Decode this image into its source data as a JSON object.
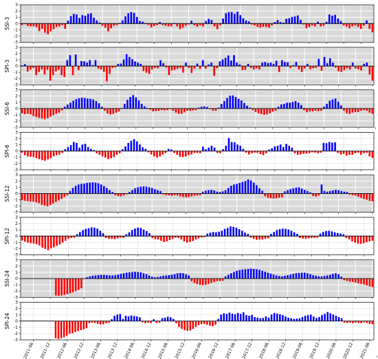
{
  "chart_data": {
    "type": "bar",
    "x_tick_labels": [
      "2011-06",
      "2011-12",
      "2012-06",
      "2012-12",
      "2013-06",
      "2013-12",
      "2014-06",
      "2014-12",
      "2015-06",
      "2015-12",
      "2016-06",
      "2016-12",
      "2017-06",
      "2017-12",
      "2018-06",
      "2018-12",
      "2019-06",
      "2019-12",
      "2020-06",
      "2020-12",
      "2021-06",
      "2021-12",
      "2022-06",
      "2022-12"
    ],
    "y_ticks": [
      3,
      2,
      1,
      0,
      -1,
      -2,
      -3
    ],
    "ylim": [
      -3,
      3
    ],
    "grid": true,
    "colors": {
      "positive": "#0000ff",
      "negative": "#ff0000",
      "ssi_background": "#d9d9d9",
      "spi_background": "#ffffff",
      "zero_line": "#000000"
    },
    "panels": [
      {
        "ylabel": "SSI-3",
        "background": "gray",
        "values": [
          -0.25,
          -0.1,
          -0.4,
          -0.45,
          -0.45,
          -0.55,
          -1.2,
          -0.85,
          -1.45,
          -1.7,
          -1.25,
          -0.9,
          -0.55,
          -0.45,
          -0.25,
          -0.85,
          0.45,
          1.2,
          1.55,
          1.45,
          0.9,
          1.35,
          1.25,
          1.55,
          1.65,
          0.95,
          0.5,
          0.15,
          -0.35,
          -0.65,
          -1.25,
          -0.75,
          -0.35,
          -0.25,
          0.1,
          0.5,
          1.15,
          1.65,
          1.85,
          1.7,
          1.05,
          0.4,
          0.3,
          0.1,
          -0.2,
          -0.6,
          -0.4,
          -0.25,
          0.25,
          -0.25,
          -0.35,
          -0.45,
          -0.45,
          0.1,
          -0.45,
          -0.9,
          -0.65,
          -0.35,
          -0.15,
          0.45,
          -0.25,
          -0.5,
          -0.3,
          -0.45,
          0.4,
          0.75,
          0.55,
          -0.45,
          -0.9,
          -0.25,
          0.8,
          1.65,
          1.85,
          1.85,
          1.55,
          1.9,
          1.35,
          0.85,
          0.5,
          0.35,
          -0.15,
          -0.3,
          -0.55,
          -0.65,
          -0.5,
          -0.55,
          -0.65,
          -0.3,
          0.25,
          0.55,
          0.25,
          0.15,
          0.75,
          0.85,
          1.05,
          1.15,
          1.3,
          0.6,
          -0.15,
          -0.75,
          -0.55,
          -0.3,
          -0.45,
          0.3,
          -0.45,
          -0.35,
          0.3,
          1.45,
          1.25,
          1.4,
          0.8,
          0.4,
          -0.3,
          -0.5,
          -0.75,
          -0.45,
          -0.3,
          -0.55,
          -0.85,
          -0.35,
          0.5,
          -0.85,
          -1.4
        ]
      },
      {
        "ylabel": "SPI-3",
        "background": "gray",
        "values": [
          0.1,
          0.3,
          -0.9,
          -0.55,
          -0.3,
          -1.45,
          -0.95,
          -0.55,
          -1.35,
          -0.6,
          -2.35,
          -1.45,
          -0.85,
          -0.6,
          -1.45,
          -1.75,
          0.95,
          1.75,
          -1.45,
          1.85,
          -0.65,
          0.8,
          0.75,
          0.55,
          0.95,
          0.15,
          0.95,
          -0.4,
          -0.55,
          -0.95,
          -2.45,
          -1.25,
          -0.3,
          -0.2,
          0.35,
          0.4,
          1.05,
          1.9,
          1.45,
          1.1,
          0.75,
          0.55,
          0.35,
          -0.8,
          -1.05,
          -1.25,
          -0.55,
          -0.3,
          -0.35,
          0.95,
          0.45,
          -0.25,
          -1.45,
          -0.7,
          -0.6,
          -0.45,
          -0.3,
          -1.05,
          0.55,
          -0.3,
          -1.1,
          -0.4,
          0.4,
          -0.45,
          0.95,
          -0.4,
          0.25,
          0.55,
          -1.55,
          -0.35,
          0.75,
          1.05,
          1.3,
          1.7,
          0.9,
          1.75,
          0.55,
          0.25,
          -0.65,
          -0.6,
          0.35,
          -0.3,
          -0.55,
          -0.35,
          -0.55,
          0.55,
          0.65,
          0.5,
          0.55,
          0.35,
          0.85,
          -0.95,
          0.95,
          0.65,
          0.6,
          -0.3,
          0.15,
          0.65,
          -0.55,
          -0.95,
          -0.4,
          0.35,
          -0.5,
          -0.35,
          -0.3,
          1.15,
          -0.75,
          1.45,
          0.45,
          1.25,
          0.55,
          -0.25,
          -0.85,
          -0.95,
          -0.65,
          -0.35,
          -0.55,
          0.55,
          -0.4,
          -0.5,
          -0.7,
          0.35,
          0.55,
          -1.35,
          -2.35
        ]
      },
      {
        "ylabel": "SSI-6",
        "background": "gray",
        "values": [
          -0.75,
          -0.9,
          -0.85,
          -0.95,
          -1.2,
          -1.35,
          -1.5,
          -1.6,
          -1.7,
          -1.55,
          -1.3,
          -1.05,
          -0.85,
          -0.65,
          -0.3,
          0.3,
          0.65,
          0.95,
          1.25,
          1.5,
          1.65,
          1.75,
          1.7,
          1.6,
          1.55,
          1.45,
          1.2,
          0.85,
          0.3,
          -0.35,
          -0.8,
          -0.95,
          -0.85,
          -0.65,
          -0.45,
          0.1,
          0.75,
          1.4,
          1.85,
          2.15,
          1.8,
          1.3,
          0.75,
          0.35,
          0.1,
          -0.2,
          -0.45,
          -0.4,
          -0.35,
          -0.25,
          -0.3,
          -0.25,
          -0.1,
          -0.35,
          -0.65,
          -0.85,
          -0.85,
          -0.6,
          -0.35,
          -0.35,
          -0.3,
          -0.25,
          0.15,
          0.3,
          0.35,
          0.25,
          -0.1,
          -0.35,
          -0.35,
          0.15,
          0.75,
          1.2,
          1.7,
          2.05,
          2.1,
          1.85,
          1.55,
          1.3,
          0.9,
          0.45,
          0.15,
          -0.25,
          -0.55,
          -0.75,
          -0.9,
          -1.0,
          -0.95,
          -0.75,
          -0.5,
          -0.35,
          0.3,
          0.65,
          0.75,
          0.95,
          0.95,
          1.05,
          1.2,
          0.95,
          0.55,
          -0.25,
          -0.6,
          -0.45,
          -0.45,
          -0.35,
          -0.4,
          -0.35,
          0.3,
          0.75,
          1.25,
          1.45,
          1.6,
          1.1,
          0.5,
          -0.35,
          -0.75,
          -0.85,
          -0.65,
          -0.55,
          -0.55,
          -0.35,
          -0.25,
          -0.35,
          -0.65,
          -0.85
        ]
      },
      {
        "ylabel": "SPI-6",
        "background": "white",
        "values": [
          -0.25,
          -0.65,
          -0.85,
          -0.9,
          -0.95,
          -1.15,
          -1.3,
          -1.45,
          -1.55,
          -1.35,
          -1.15,
          -0.85,
          -0.65,
          -0.55,
          -0.3,
          0.3,
          0.65,
          0.95,
          1.45,
          1.3,
          0.55,
          1.05,
          1.15,
          0.65,
          0.35,
          0.15,
          -0.35,
          -0.6,
          -0.85,
          -1.05,
          -1.3,
          -1.15,
          -0.95,
          -0.6,
          -0.35,
          0.3,
          0.75,
          1.3,
          1.65,
          1.9,
          1.55,
          1.05,
          0.6,
          0.35,
          -0.2,
          -0.55,
          -0.85,
          -1.05,
          -0.85,
          -0.55,
          -0.3,
          0.35,
          0.25,
          -0.3,
          -0.6,
          -0.9,
          -0.95,
          -0.85,
          -0.65,
          -0.55,
          -0.3,
          -0.3,
          -0.35,
          0.7,
          0.3,
          0.55,
          0.85,
          0.55,
          -0.3,
          -0.35,
          0.3,
          0.85,
          2.1,
          1.45,
          1.4,
          1.05,
          0.85,
          0.35,
          -0.25,
          -0.55,
          -0.35,
          -0.25,
          -0.3,
          -0.5,
          -0.65,
          -0.35,
          0.25,
          0.45,
          0.75,
          0.85,
          1.05,
          0.65,
          1.15,
          0.85,
          0.55,
          -0.35,
          -0.6,
          -0.55,
          -0.45,
          -0.4,
          -0.35,
          -0.2,
          -0.25,
          -0.35,
          -0.25,
          1.3,
          1.25,
          1.45,
          1.35,
          1.4,
          -0.3,
          -0.55,
          -0.45,
          -0.75,
          -0.6,
          -0.6,
          -0.35,
          -0.25,
          -0.6,
          -0.35,
          -0.3,
          -0.85,
          -1.1
        ]
      },
      {
        "ylabel": "SSI-12",
        "background": "gray",
        "values": [
          -1.05,
          -1.15,
          -1.2,
          -1.25,
          -1.3,
          -1.4,
          -1.55,
          -1.8,
          -1.95,
          -2.05,
          -1.85,
          -1.6,
          -1.35,
          -1.1,
          -0.85,
          -0.55,
          -0.3,
          0.4,
          0.9,
          1.25,
          1.45,
          1.55,
          1.6,
          1.7,
          1.75,
          1.8,
          1.75,
          1.65,
          1.45,
          1.2,
          0.9,
          0.55,
          0.25,
          -0.25,
          -0.4,
          -0.45,
          -0.3,
          -0.1,
          0.25,
          0.55,
          0.85,
          1.0,
          1.1,
          1.15,
          1.1,
          1.0,
          0.9,
          0.7,
          0.55,
          0.4,
          -0.15,
          -0.25,
          -0.3,
          -0.35,
          -0.25,
          -0.3,
          -0.45,
          -0.55,
          -0.6,
          -0.55,
          -0.45,
          -0.35,
          -0.3,
          -0.25,
          0.3,
          0.45,
          0.55,
          0.6,
          0.5,
          0.3,
          0.25,
          0.35,
          0.55,
          0.9,
          1.25,
          1.45,
          1.55,
          1.7,
          1.85,
          2.0,
          2.25,
          2.1,
          1.75,
          1.35,
          0.85,
          0.45,
          -0.45,
          -0.65,
          -0.75,
          -0.8,
          -0.75,
          -0.65,
          -0.6,
          0.35,
          0.55,
          0.7,
          0.85,
          0.95,
          1.0,
          0.8,
          0.6,
          0.4,
          0.2,
          -0.4,
          -0.5,
          -0.3,
          1.45,
          0.4,
          0.3,
          0.4,
          0.5,
          0.6,
          0.55,
          0.4,
          0.3,
          0.25,
          -0.15,
          -0.25,
          -0.35,
          -0.5,
          -0.7,
          -0.85,
          -1.0,
          -1.15,
          -1.25
        ]
      },
      {
        "ylabel": "SPI-12",
        "background": "white",
        "values": [
          -0.7,
          -0.9,
          -1.05,
          -1.15,
          -1.2,
          -1.3,
          -1.5,
          -1.85,
          -2.05,
          -2.25,
          -1.95,
          -1.8,
          -1.55,
          -1.35,
          -1.05,
          -0.75,
          -0.45,
          -0.3,
          -0.25,
          0.3,
          0.65,
          0.95,
          1.15,
          1.25,
          1.4,
          1.35,
          1.2,
          0.85,
          0.45,
          -0.3,
          -0.45,
          -0.45,
          -0.5,
          -0.35,
          -0.25,
          -0.3,
          0.3,
          0.6,
          0.95,
          1.2,
          1.35,
          1.3,
          1.05,
          0.8,
          0.5,
          -0.3,
          -0.5,
          -0.55,
          -0.75,
          -0.95,
          -0.85,
          -0.65,
          -0.45,
          -0.25,
          -0.3,
          -0.55,
          -0.85,
          -1.05,
          -0.95,
          -0.8,
          -0.55,
          -0.35,
          -0.25,
          -0.15,
          0.4,
          0.55,
          0.65,
          0.6,
          0.7,
          0.85,
          1.15,
          1.3,
          1.55,
          1.45,
          1.35,
          1.1,
          0.85,
          0.55,
          0.35,
          -0.25,
          -0.45,
          -0.6,
          -0.55,
          -0.55,
          -0.45,
          -0.35,
          0.35,
          0.65,
          0.95,
          1.1,
          1.2,
          1.15,
          1.05,
          0.85,
          0.6,
          0.35,
          -0.3,
          -0.4,
          -0.45,
          -0.35,
          -0.3,
          -0.3,
          -0.25,
          0.4,
          0.65,
          0.8,
          0.85,
          0.75,
          0.6,
          0.5,
          0.4,
          0.3,
          -0.3,
          -0.55,
          -0.85,
          -1.05,
          -1.2,
          -1.25,
          -1.15,
          -1.0,
          -0.85,
          -0.75
        ]
      },
      {
        "ylabel": "SSI-24",
        "background": "gray",
        "values": [
          -0.05,
          -0.05,
          -0.05,
          -0.05,
          -0.05,
          -0.05,
          -0.05,
          -0.05,
          -0.05,
          -0.05,
          -0.05,
          -0.05,
          -2.7,
          -2.75,
          -2.7,
          -2.6,
          -2.5,
          -2.35,
          -2.2,
          -2.0,
          -1.8,
          -1.55,
          0.05,
          0.2,
          0.35,
          0.45,
          0.5,
          0.55,
          0.6,
          0.6,
          0.55,
          0.5,
          0.5,
          0.55,
          0.65,
          0.75,
          0.85,
          0.95,
          1.0,
          1.05,
          1.1,
          1.05,
          1.0,
          0.85,
          0.7,
          0.5,
          0.3,
          0.2,
          0.25,
          0.35,
          0.45,
          0.5,
          0.55,
          0.6,
          0.7,
          0.85,
          0.9,
          0.85,
          0.7,
          0.5,
          -0.45,
          -0.7,
          -0.9,
          -1.0,
          -1.05,
          -1.0,
          -0.85,
          -0.7,
          -0.55,
          -0.4,
          -0.4,
          -0.35,
          0.35,
          0.6,
          0.85,
          1.05,
          1.25,
          1.35,
          1.45,
          1.5,
          1.55,
          1.6,
          1.55,
          1.5,
          1.4,
          1.25,
          1.1,
          0.95,
          0.8,
          0.65,
          0.5,
          0.4,
          0.35,
          0.45,
          0.55,
          0.65,
          0.75,
          0.85,
          0.9,
          0.95,
          0.95,
          0.85,
          0.7,
          0.55,
          0.45,
          0.35,
          0.35,
          0.4,
          0.5,
          0.6,
          0.75,
          0.85,
          0.7,
          0.3,
          -0.25,
          -0.4,
          -0.5,
          -0.55,
          -0.65,
          -0.75,
          -0.85,
          -0.95,
          -1.1,
          -1.25,
          -1.35
        ]
      },
      {
        "ylabel": "SPI-24",
        "background": "white",
        "values": [
          0.05,
          0.05,
          0.05,
          0.05,
          0.05,
          0.05,
          0.05,
          0.05,
          0.05,
          0.05,
          0.05,
          0.05,
          -2.75,
          -2.85,
          -2.75,
          -2.6,
          -2.35,
          -2.05,
          -1.95,
          -1.75,
          -1.6,
          -1.45,
          -1.3,
          -1.15,
          -0.35,
          -0.25,
          -0.3,
          -0.45,
          -0.55,
          -0.5,
          -0.35,
          -0.25,
          0.3,
          0.85,
          1.05,
          1.15,
          0.35,
          0.85,
          0.75,
          0.9,
          0.8,
          0.75,
          0.6,
          -0.2,
          -0.35,
          -0.25,
          -0.3,
          0.3,
          -0.3,
          -0.25,
          0.45,
          0.55,
          0.7,
          0.6,
          0.35,
          -0.35,
          -0.95,
          -1.25,
          -1.45,
          -1.55,
          -1.5,
          -1.25,
          -0.95,
          -0.65,
          -0.5,
          -0.45,
          -0.6,
          -0.75,
          -0.85,
          -0.6,
          0.35,
          1.05,
          1.25,
          1.15,
          1.35,
          1.2,
          1.1,
          1.3,
          1.15,
          1.4,
          0.95,
          0.85,
          1.0,
          0.65,
          0.55,
          0.45,
          0.5,
          0.75,
          0.55,
          1.05,
          1.3,
          1.2,
          1.1,
          0.95,
          0.75,
          0.55,
          0.45,
          0.35,
          0.4,
          0.45,
          0.65,
          0.85,
          0.95,
          1.05,
          0.75,
          0.5,
          0.65,
          0.95,
          1.15,
          1.45,
          1.25,
          1.05,
          0.85,
          0.65,
          0.45,
          -0.25,
          -0.3,
          -0.25,
          -0.35,
          -0.25,
          -0.3,
          -0.35,
          -0.2,
          -0.3,
          -0.45,
          -0.5
        ]
      }
    ]
  }
}
